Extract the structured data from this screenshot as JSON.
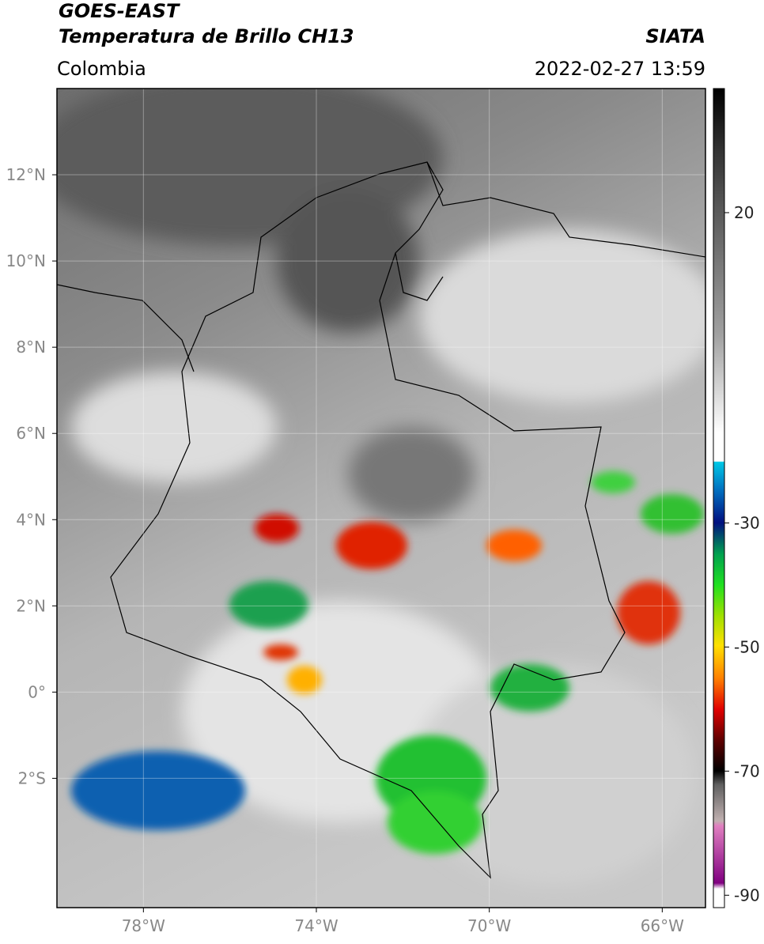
{
  "header": {
    "title_line_1": "GOES-EAST",
    "title_line_2": "Temperatura de Brillo CH13",
    "region": "Colombia",
    "source": "SIATA",
    "timestamp": "2022-02-27 13:59"
  },
  "map": {
    "xlim": [
      -80,
      -65
    ],
    "ylim": [
      -5,
      14
    ],
    "xticks": [
      {
        "value": -78,
        "label": "78°W"
      },
      {
        "value": -74,
        "label": "74°W"
      },
      {
        "value": -70,
        "label": "70°W"
      },
      {
        "value": -66,
        "label": "66°W"
      }
    ],
    "yticks": [
      {
        "value": 12,
        "label": "12°N"
      },
      {
        "value": 10,
        "label": "10°N"
      },
      {
        "value": 8,
        "label": "8°N"
      },
      {
        "value": 6,
        "label": "6°N"
      },
      {
        "value": 4,
        "label": "4°N"
      },
      {
        "value": 2,
        "label": "2°N"
      },
      {
        "value": 0,
        "label": "0°"
      },
      {
        "value": -2,
        "label": "2°S"
      }
    ],
    "grid": true
  },
  "colorbar": {
    "vlim": [
      -92,
      40
    ],
    "ticks": [
      20,
      -30,
      -50,
      -70,
      -90
    ]
  }
}
